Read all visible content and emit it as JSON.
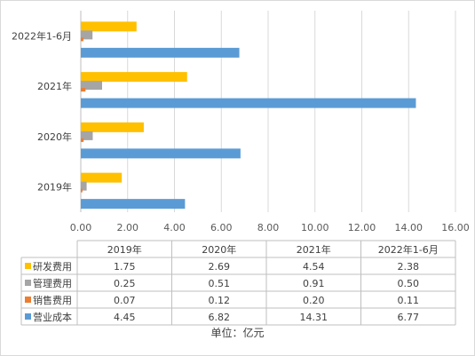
{
  "chart_data": {
    "type": "bar",
    "orientation": "horizontal",
    "categories": [
      "2019年",
      "2020年",
      "2021年",
      "2022年1-6月"
    ],
    "series": [
      {
        "name": "研发费用",
        "color": "#ffc000",
        "values": [
          1.75,
          2.69,
          4.54,
          2.38
        ],
        "labels": [
          "1.75",
          "2.69",
          "4.54",
          "2.38"
        ]
      },
      {
        "name": "管理费用",
        "color": "#a5a5a5",
        "values": [
          0.25,
          0.51,
          0.91,
          0.5
        ],
        "labels": [
          "0.25",
          "0.51",
          "0.91",
          "0.50"
        ]
      },
      {
        "name": "销售费用",
        "color": "#ed7d31",
        "values": [
          0.07,
          0.12,
          0.2,
          0.11
        ],
        "labels": [
          "0.07",
          "0.12",
          "0.20",
          "0.11"
        ]
      },
      {
        "name": "营业成本",
        "color": "#5b9bd5",
        "values": [
          4.45,
          6.82,
          14.31,
          6.77
        ],
        "labels": [
          "4.45",
          "6.82",
          "14.31",
          "6.77"
        ]
      }
    ],
    "xlim": [
      0,
      16
    ],
    "x_ticks": [
      "0.00",
      "2.00",
      "4.00",
      "6.00",
      "8.00",
      "10.00",
      "12.00",
      "14.00",
      "16.00"
    ],
    "grid": true,
    "legend": "data-table",
    "unit_label": "单位：亿元"
  }
}
